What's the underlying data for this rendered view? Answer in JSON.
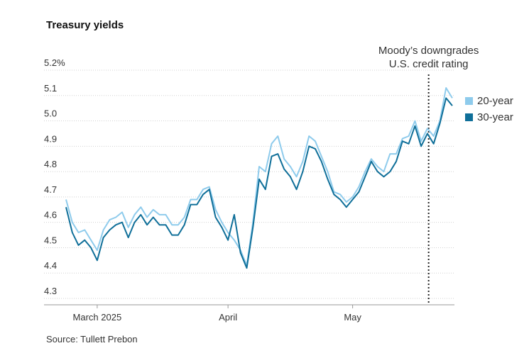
{
  "chart_data": {
    "type": "line",
    "title": "Treasury yields",
    "source": "Source: Tullett Prebon",
    "annotation": [
      "Moody’s downgrades",
      "U.S. credit rating"
    ],
    "categories": [
      null,
      null,
      null,
      null,
      null,
      "March 2025",
      null,
      null,
      null,
      null,
      null,
      null,
      null,
      null,
      null,
      null,
      null,
      null,
      null,
      null,
      null,
      null,
      null,
      null,
      null,
      null,
      "April",
      null,
      null,
      null,
      null,
      null,
      null,
      null,
      null,
      null,
      null,
      null,
      null,
      null,
      null,
      null,
      null,
      null,
      null,
      null,
      "May",
      null,
      null,
      null,
      null,
      null,
      null,
      null,
      null,
      null,
      null,
      null,
      null,
      null,
      null,
      null,
      null
    ],
    "series": [
      {
        "name": "20-year",
        "color": "#8ecbec",
        "values": [
          4.69,
          4.6,
          4.56,
          4.57,
          4.53,
          4.49,
          4.57,
          4.61,
          4.62,
          4.64,
          4.58,
          4.63,
          4.66,
          4.62,
          4.65,
          4.63,
          4.63,
          4.59,
          4.59,
          4.62,
          4.69,
          4.69,
          4.73,
          4.74,
          4.65,
          4.6,
          4.56,
          4.53,
          4.49,
          4.43,
          4.6,
          4.82,
          4.8,
          4.91,
          4.94,
          4.85,
          4.82,
          4.78,
          4.84,
          4.94,
          4.92,
          4.86,
          4.8,
          4.72,
          4.71,
          4.68,
          4.7,
          4.74,
          4.8,
          4.85,
          4.82,
          4.8,
          4.87,
          4.87,
          4.93,
          4.94,
          5.0,
          4.92,
          4.97,
          4.94,
          5.0,
          5.13,
          5.09
        ]
      },
      {
        "name": "30-year",
        "color": "#0f6f99",
        "values": [
          4.66,
          4.56,
          4.51,
          4.53,
          4.5,
          4.45,
          4.54,
          4.57,
          4.59,
          4.6,
          4.54,
          4.6,
          4.63,
          4.59,
          4.62,
          4.59,
          4.59,
          4.55,
          4.55,
          4.59,
          4.67,
          4.67,
          4.71,
          4.73,
          4.62,
          4.58,
          4.53,
          4.63,
          4.48,
          4.42,
          4.58,
          4.77,
          4.73,
          4.86,
          4.87,
          4.81,
          4.78,
          4.73,
          4.8,
          4.9,
          4.89,
          4.84,
          4.77,
          4.71,
          4.69,
          4.66,
          4.69,
          4.72,
          4.78,
          4.84,
          4.8,
          4.78,
          4.8,
          4.84,
          4.92,
          4.91,
          4.98,
          4.9,
          4.95,
          4.91,
          4.99,
          5.09,
          5.06
        ]
      }
    ],
    "ylim": [
      4.3,
      5.2
    ],
    "yticks": [
      4.3,
      4.4,
      4.5,
      4.6,
      4.7,
      4.8,
      4.9,
      {
        "value": 5,
        "label": "5.0"
      },
      5.1,
      {
        "value": 5.2,
        "label": "5.2%"
      }
    ],
    "grid": true,
    "legend": "right"
  }
}
